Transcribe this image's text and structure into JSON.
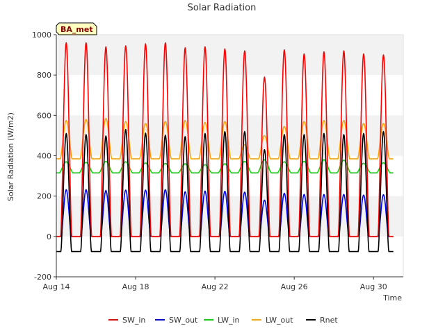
{
  "chart_data": {
    "type": "line",
    "title": "Solar Radiation",
    "xlabel": "Time",
    "ylabel": "Solar Radiation (W/m2)",
    "badge": "BA_met",
    "x_start": "Aug 14",
    "x_end": "Aug 31",
    "xlim": [
      14.0,
      31.5
    ],
    "ylim": [
      -200,
      1000
    ],
    "y_ticks": [
      -200,
      0,
      200,
      400,
      600,
      800,
      1000
    ],
    "x_ticks": [
      {
        "day": 14,
        "label": "Aug 14"
      },
      {
        "day": 18,
        "label": "Aug 18"
      },
      {
        "day": 22,
        "label": "Aug 22"
      },
      {
        "day": 26,
        "label": "Aug 26"
      },
      {
        "day": 30,
        "label": "Aug 30"
      }
    ],
    "grid": "horizontal bands",
    "legend_position": "bottom-center",
    "days": [
      14,
      15,
      16,
      17,
      18,
      19,
      20,
      21,
      22,
      23,
      24,
      25,
      26,
      27,
      28,
      29,
      30
    ],
    "series": [
      {
        "name": "SW_in",
        "color": "#ff0000",
        "daily_peak": [
          960,
          960,
          940,
          945,
          955,
          960,
          935,
          940,
          930,
          920,
          790,
          925,
          905,
          915,
          920,
          905,
          900
        ]
      },
      {
        "name": "SW_out",
        "color": "#0000ff",
        "daily_peak": [
          232,
          232,
          228,
          230,
          230,
          232,
          222,
          225,
          224,
          220,
          180,
          214,
          208,
          208,
          208,
          205,
          207
        ]
      },
      {
        "name": "LW_in",
        "color": "#00e000",
        "daily_peak": [
          370,
          368,
          372,
          370,
          364,
          362,
          360,
          355,
          360,
          372,
          380,
          370,
          372,
          380,
          378,
          362,
          365
        ]
      },
      {
        "name": "LW_out",
        "color": "#ffa500",
        "daily_peak": [
          575,
          580,
          585,
          570,
          560,
          570,
          575,
          565,
          570,
          455,
          500,
          545,
          570,
          575,
          575,
          560,
          560
        ]
      },
      {
        "name": "Rnet",
        "color": "#000000",
        "daily_peak": [
          510,
          505,
          498,
          530,
          512,
          502,
          495,
          510,
          520,
          520,
          430,
          505,
          505,
          510,
          505,
          510,
          520
        ]
      }
    ]
  }
}
